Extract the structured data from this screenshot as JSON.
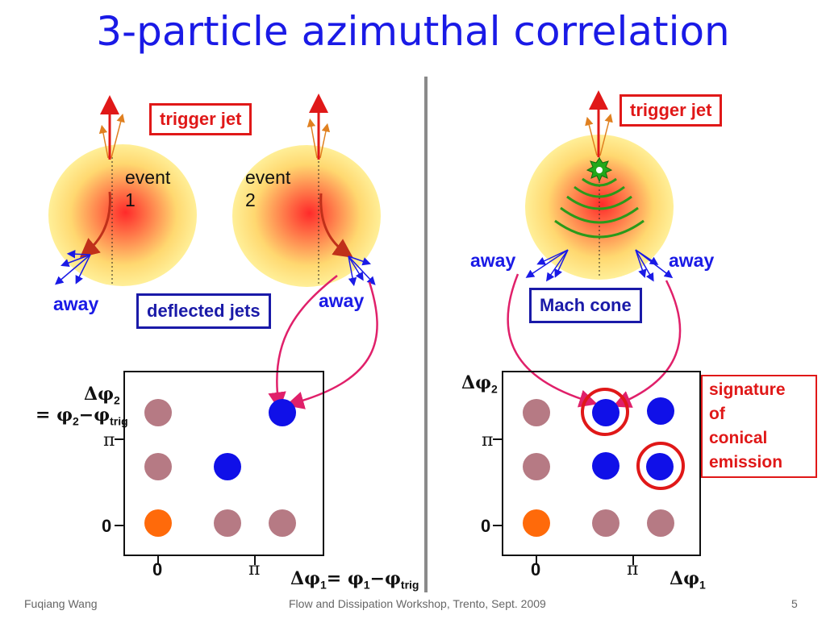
{
  "slide": {
    "title": "3-particle azimuthal correlation",
    "footer_left": "Fuqiang Wang",
    "footer_center": "Flow and Dissipation Workshop, Trento, Sept. 2009",
    "page_number": "5"
  },
  "left_panel": {
    "trigger_jet_label": "trigger jet",
    "event1_line1": "event",
    "event1_line2": "1",
    "event2_line1": "event",
    "event2_line2": "2",
    "away_label_1": "away",
    "away_label_2": "away",
    "deflected_label": "deflected jets",
    "y_axis_label_top": "Δφ",
    "y_axis_sub": "2",
    "y_axis_eq": "= φ",
    "y_axis_eq_sub1": "2",
    "y_axis_minus": "−φ",
    "y_axis_eq_sub2": "trig",
    "y_tick_pi": "π",
    "y_tick_0": "0",
    "x_tick_0": "0",
    "x_tick_pi": "π",
    "x_axis_label": "Δφ",
    "x_axis_sub": "1",
    "x_axis_eq": "= φ",
    "x_axis_eq_sub1": "1",
    "x_axis_minus": "−φ",
    "x_axis_eq_sub2": "trig"
  },
  "right_panel": {
    "trigger_jet_label": "trigger jet",
    "away_label_left": "away",
    "away_label_right": "away",
    "mach_cone_label": "Mach cone",
    "signature_line1": "signature",
    "signature_line2": "of",
    "signature_line3": "conical",
    "signature_line4": "emission",
    "y_axis_label": "Δφ",
    "y_axis_sub": "2",
    "y_tick_pi": "π",
    "y_tick_0": "0",
    "x_tick_0": "0",
    "x_tick_pi": "π",
    "x_axis_label": "Δφ",
    "x_axis_sub": "1"
  },
  "colors": {
    "title": "#1a1ae6",
    "trigger": "#e01818",
    "deflected_box": "#1a1aa8",
    "dot_mauve": "#b67a84",
    "dot_blue": "#1010e8",
    "dot_orange": "#ff6a0a",
    "arrow_magenta": "#e0206a",
    "wave_green": "#2a9a1a"
  }
}
